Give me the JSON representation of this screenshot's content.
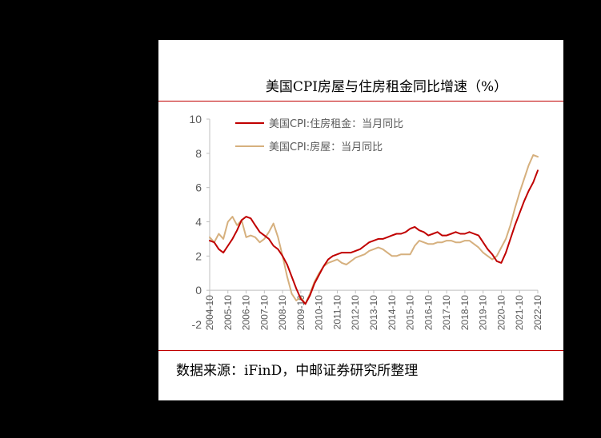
{
  "title": "美国CPI房屋与住房租金同比增速（%）",
  "source": "数据来源：iFinD，中邮证券研究所整理",
  "colors": {
    "rent": "#c00000",
    "housing": "#d6b07e",
    "accent": "#c00000",
    "axis": "#bfbfbf",
    "tick_text": "#595959"
  },
  "chart_data": {
    "type": "line",
    "title": "美国CPI房屋与住房租金同比增速（%）",
    "xlabel": "",
    "ylabel": "",
    "ylim": [
      -2,
      10
    ],
    "yticks": [
      -2,
      0,
      2,
      4,
      6,
      8,
      10
    ],
    "xlim": [
      2004.75,
      2022.75
    ],
    "xticks": [
      "2004-10",
      "2005-10",
      "2006-10",
      "2007-10",
      "2008-10",
      "2009-10",
      "2010-10",
      "2011-10",
      "2012-10",
      "2013-10",
      "2014-10",
      "2015-10",
      "2016-10",
      "2017-10",
      "2018-10",
      "2019-10",
      "2020-10",
      "2021-10",
      "2022-10"
    ],
    "grid": false,
    "legend_position": "top-left",
    "series": [
      {
        "name": "美国CPI:住房租金：当月同比",
        "color": "#c00000",
        "x": [
          2004.75,
          2005.0,
          2005.25,
          2005.5,
          2005.75,
          2006.0,
          2006.25,
          2006.5,
          2006.75,
          2007.0,
          2007.25,
          2007.5,
          2007.75,
          2008.0,
          2008.25,
          2008.5,
          2008.75,
          2009.0,
          2009.25,
          2009.5,
          2009.75,
          2010.0,
          2010.25,
          2010.5,
          2010.75,
          2011.0,
          2011.25,
          2011.5,
          2011.75,
          2012.0,
          2012.25,
          2012.5,
          2012.75,
          2013.0,
          2013.25,
          2013.5,
          2013.75,
          2014.0,
          2014.25,
          2014.5,
          2014.75,
          2015.0,
          2015.25,
          2015.5,
          2015.75,
          2016.0,
          2016.25,
          2016.5,
          2016.75,
          2017.0,
          2017.25,
          2017.5,
          2017.75,
          2018.0,
          2018.25,
          2018.5,
          2018.75,
          2019.0,
          2019.25,
          2019.5,
          2019.75,
          2020.0,
          2020.25,
          2020.5,
          2020.75,
          2021.0,
          2021.25,
          2021.5,
          2021.75,
          2022.0,
          2022.25,
          2022.5,
          2022.75
        ],
        "values": [
          2.9,
          2.8,
          2.4,
          2.2,
          2.6,
          3.0,
          3.5,
          4.1,
          4.3,
          4.2,
          3.8,
          3.4,
          3.2,
          3.0,
          2.6,
          2.4,
          2.0,
          1.5,
          0.8,
          0.1,
          -0.5,
          -0.8,
          -0.3,
          0.4,
          0.9,
          1.4,
          1.8,
          2.0,
          2.1,
          2.2,
          2.2,
          2.2,
          2.3,
          2.4,
          2.6,
          2.8,
          2.9,
          3.0,
          3.0,
          3.1,
          3.2,
          3.3,
          3.3,
          3.4,
          3.6,
          3.7,
          3.5,
          3.4,
          3.2,
          3.3,
          3.4,
          3.2,
          3.2,
          3.3,
          3.4,
          3.3,
          3.3,
          3.4,
          3.3,
          3.2,
          2.8,
          2.4,
          2.1,
          1.7,
          1.6,
          2.2,
          3.0,
          3.8,
          4.5,
          5.2,
          5.8,
          6.3,
          7.0
        ]
      },
      {
        "name": "美国CPI:房屋：当月同比",
        "color": "#d6b07e",
        "x": [
          2004.75,
          2005.0,
          2005.25,
          2005.5,
          2005.75,
          2006.0,
          2006.25,
          2006.5,
          2006.75,
          2007.0,
          2007.25,
          2007.5,
          2007.75,
          2008.0,
          2008.25,
          2008.5,
          2008.75,
          2009.0,
          2009.25,
          2009.5,
          2009.75,
          2010.0,
          2010.25,
          2010.5,
          2010.75,
          2011.0,
          2011.25,
          2011.5,
          2011.75,
          2012.0,
          2012.25,
          2012.5,
          2012.75,
          2013.0,
          2013.25,
          2013.5,
          2013.75,
          2014.0,
          2014.25,
          2014.5,
          2014.75,
          2015.0,
          2015.25,
          2015.5,
          2015.75,
          2016.0,
          2016.25,
          2016.5,
          2016.75,
          2017.0,
          2017.25,
          2017.5,
          2017.75,
          2018.0,
          2018.25,
          2018.5,
          2018.75,
          2019.0,
          2019.25,
          2019.5,
          2019.75,
          2020.0,
          2020.25,
          2020.5,
          2020.75,
          2021.0,
          2021.25,
          2021.5,
          2021.75,
          2022.0,
          2022.25,
          2022.5,
          2022.75
        ],
        "values": [
          3.1,
          2.8,
          3.3,
          3.0,
          4.0,
          4.3,
          3.8,
          4.1,
          3.1,
          3.2,
          3.1,
          2.8,
          3.0,
          3.4,
          3.9,
          3.1,
          2.0,
          0.8,
          -0.2,
          -0.6,
          -0.4,
          -0.8,
          -0.2,
          0.5,
          1.0,
          1.4,
          1.6,
          1.7,
          1.8,
          1.6,
          1.5,
          1.7,
          1.9,
          2.0,
          2.1,
          2.3,
          2.4,
          2.5,
          2.4,
          2.2,
          2.0,
          2.0,
          2.1,
          2.1,
          2.1,
          2.6,
          2.9,
          2.8,
          2.7,
          2.7,
          2.8,
          2.8,
          2.9,
          2.9,
          2.8,
          2.8,
          2.9,
          2.9,
          2.7,
          2.5,
          2.2,
          2.0,
          1.8,
          2.0,
          2.5,
          3.0,
          3.8,
          4.8,
          5.7,
          6.5,
          7.3,
          7.9,
          7.8
        ]
      }
    ]
  }
}
